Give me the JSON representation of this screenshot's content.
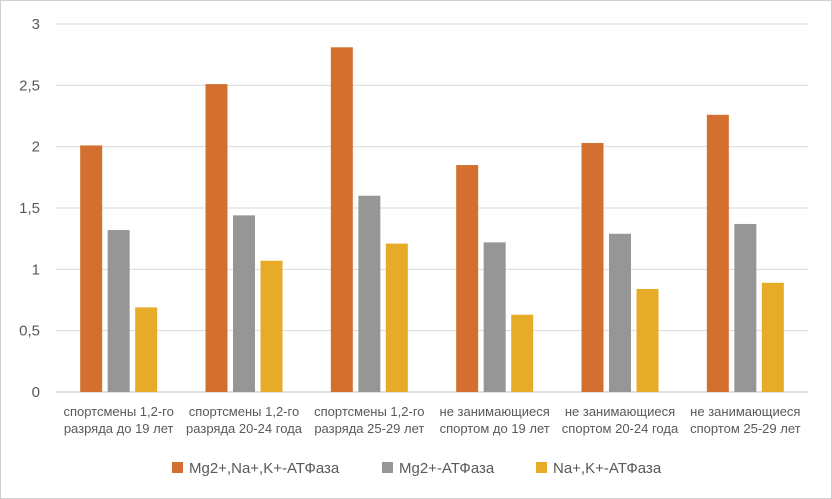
{
  "chart_data": {
    "type": "bar",
    "title": "",
    "xlabel": "",
    "ylabel": "",
    "ylim": [
      0,
      3
    ],
    "yticks": [
      "0",
      "0,5",
      "1",
      "1,5",
      "2",
      "2,5",
      "3"
    ],
    "yticks_values": [
      0,
      0.5,
      1,
      1.5,
      2,
      2.5,
      3
    ],
    "grid": true,
    "legend_position": "bottom",
    "categories": [
      [
        "спортсмены 1,2-го",
        "разряда до 19 лет"
      ],
      [
        "спортсмены 1,2-го",
        "разряда 20-24 года"
      ],
      [
        "спортсмены 1,2-го",
        "разряда 25-29 лет"
      ],
      [
        "не занимающиеся",
        "спортом до 19 лет"
      ],
      [
        "не занимающиеся",
        "спортом 20-24 года"
      ],
      [
        "не занимающиеся",
        "спортом 25-29 лет"
      ]
    ],
    "series": [
      {
        "name": "Mg2+,Na+,K+-АТФаза",
        "color": "#d4702f",
        "values": [
          2.01,
          2.51,
          2.81,
          1.85,
          2.03,
          2.26
        ]
      },
      {
        "name": "Mg2+-АТФаза",
        "color": "#969696",
        "values": [
          1.32,
          1.44,
          1.6,
          1.22,
          1.29,
          1.37
        ]
      },
      {
        "name": "Na+,K+-АТФаза",
        "color": "#e6ac28",
        "values": [
          0.69,
          1.07,
          1.21,
          0.63,
          0.84,
          0.89
        ]
      }
    ]
  }
}
